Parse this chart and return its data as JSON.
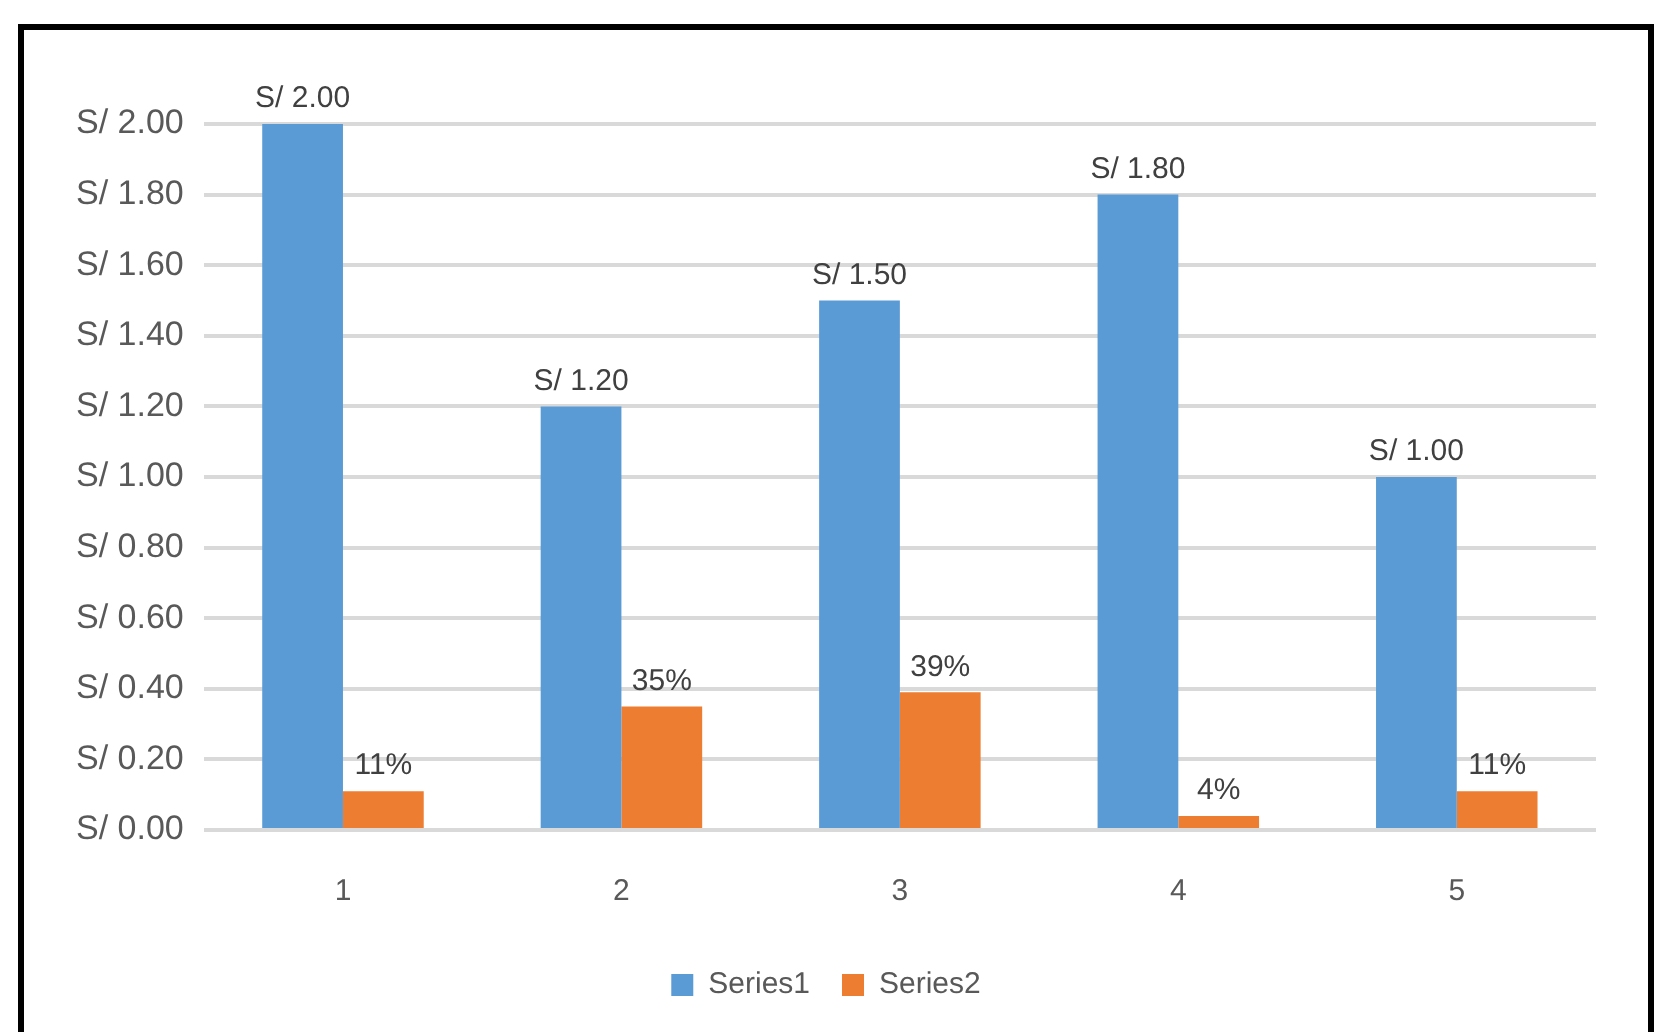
{
  "chart_data": {
    "type": "bar",
    "categories": [
      "1",
      "2",
      "3",
      "4",
      "5"
    ],
    "series": [
      {
        "name": "Series1",
        "color": "#5b9bd5",
        "values": [
          2,
          1.2,
          1.5,
          1.8,
          1
        ],
        "value_labels": [
          "S/ 2.00",
          "S/ 1.20",
          "S/ 1.50",
          "S/ 1.80",
          "S/ 1.00"
        ]
      },
      {
        "name": "Series2",
        "color": "#ed7d31",
        "values": [
          0.11,
          0.35,
          0.39,
          0.04,
          0.11
        ],
        "value_labels": [
          "11%",
          "35%",
          "39%",
          "4%",
          "11%"
        ]
      }
    ],
    "ylim": [
      0,
      2
    ],
    "yticks": [
      {
        "value": 0,
        "label": "S/ 0.00"
      },
      {
        "value": 0.2,
        "label": "S/ 0.20"
      },
      {
        "value": 0.4,
        "label": "S/ 0.40"
      },
      {
        "value": 0.6,
        "label": "S/ 0.60"
      },
      {
        "value": 0.8,
        "label": "S/ 0.80"
      },
      {
        "value": 1,
        "label": "S/ 1.00"
      },
      {
        "value": 1.2,
        "label": "S/ 1.20"
      },
      {
        "value": 1.4,
        "label": "S/ 1.40"
      },
      {
        "value": 1.6,
        "label": "S/ 1.60"
      },
      {
        "value": 1.8,
        "label": "S/ 1.80"
      },
      {
        "value": 2,
        "label": "S/ 2.00"
      }
    ],
    "grid": "y",
    "legend": "bottom"
  }
}
